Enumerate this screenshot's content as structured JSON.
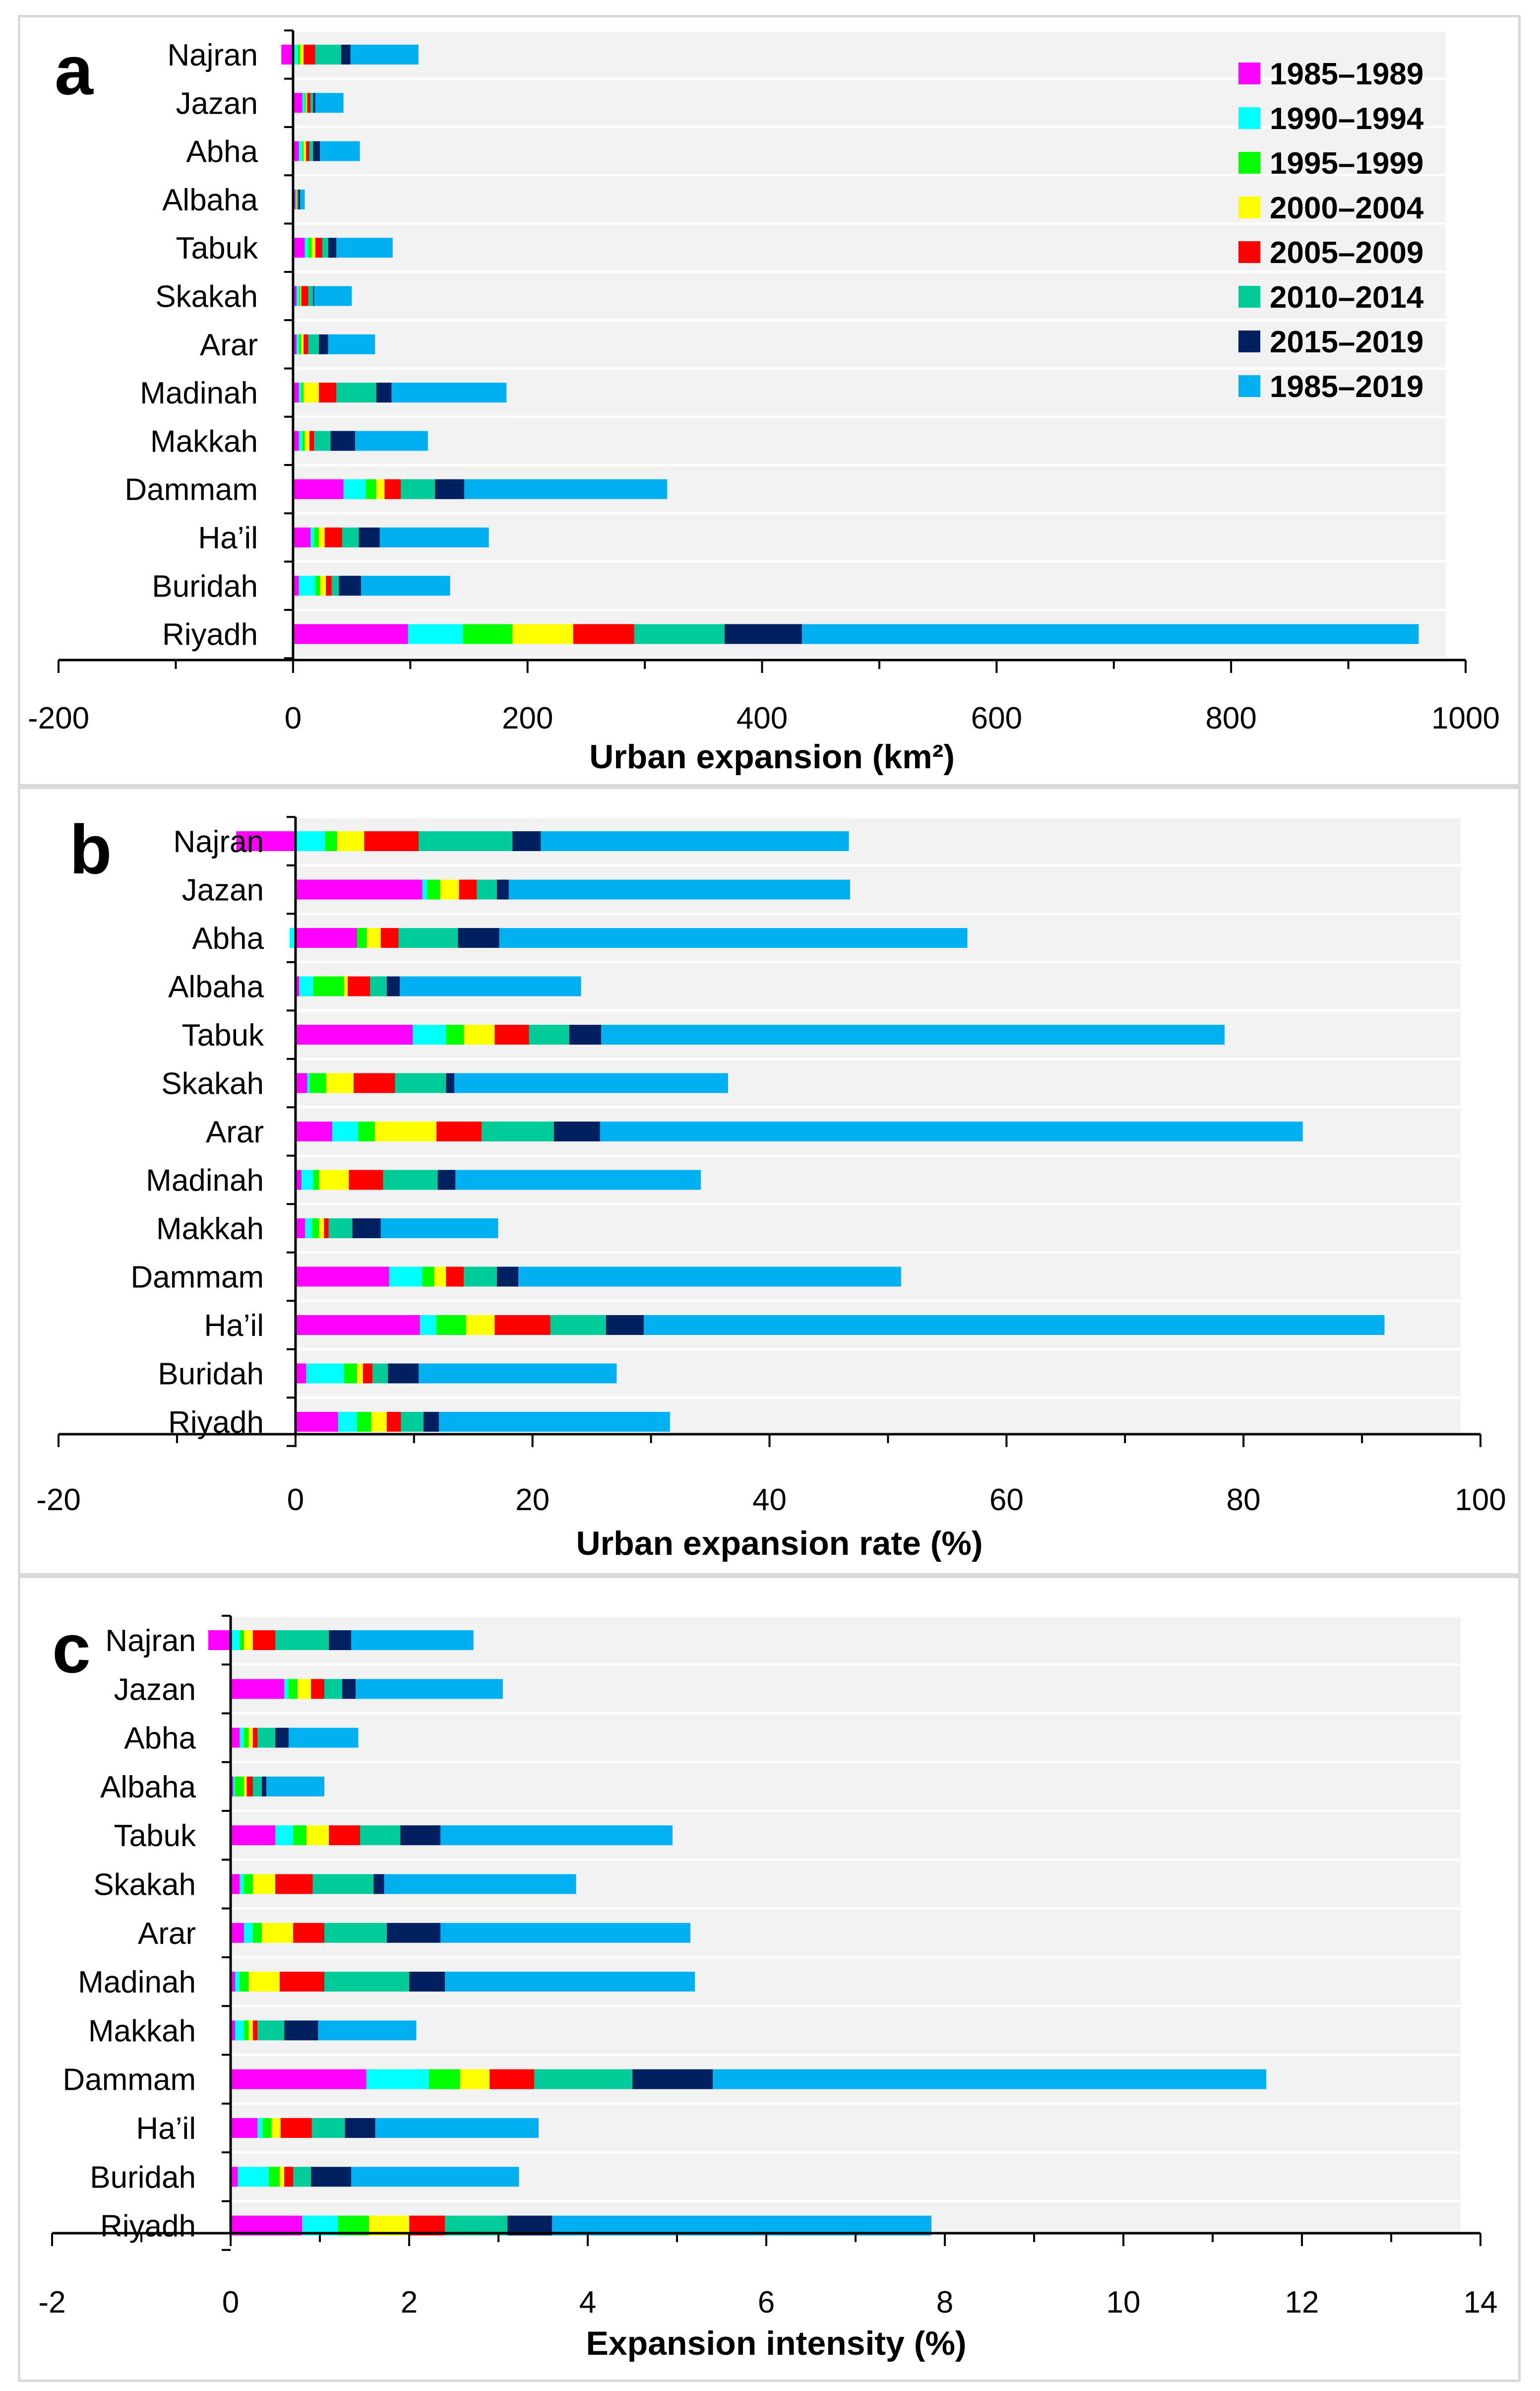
{
  "legend": [
    {
      "label": "1985–1989",
      "color": "#FF00FF"
    },
    {
      "label": "1990–1994",
      "color": "#00FFFF"
    },
    {
      "label": "1995–1999",
      "color": "#00FF00"
    },
    {
      "label": "2000–2004",
      "color": "#FFFF00"
    },
    {
      "label": "2005–2009",
      "color": "#FF0000"
    },
    {
      "label": "2010–2014",
      "color": "#00CC99"
    },
    {
      "label": "2015–2019",
      "color": "#002060"
    },
    {
      "label": "1985–2019",
      "color": "#00B0F0"
    }
  ],
  "chart_data": [
    {
      "type": "bar",
      "orientation": "horizontal",
      "stacked": true,
      "panel_label": "a",
      "xlabel": "Urban expansion (km²)",
      "xlim": [
        -200,
        1000
      ],
      "xticks": [
        "-200",
        "0",
        "200",
        "400",
        "600",
        "800",
        "1000"
      ],
      "xtick_values": [
        -200,
        0,
        200,
        400,
        600,
        800,
        1000
      ],
      "categories": [
        "Najran",
        "Jazan",
        "Abha",
        "Albaha",
        "Tabuk",
        "Skakah",
        "Arar",
        "Madinah",
        "Makkah",
        "Dammam",
        "Ha’il",
        "Buridah",
        "Riyadh"
      ],
      "series": [
        {
          "name": "1985–1989",
          "values": [
            -10,
            8,
            5,
            2,
            10,
            3,
            3,
            5,
            5,
            43,
            15,
            5,
            98
          ]
        },
        {
          "name": "1990–1994",
          "values": [
            4,
            2,
            3,
            0.5,
            3,
            2,
            2,
            2,
            3,
            19,
            3,
            14,
            47
          ]
        },
        {
          "name": "1995–1999",
          "values": [
            2,
            1,
            1,
            0.5,
            3,
            1,
            2,
            2,
            2,
            9,
            4,
            4,
            42
          ]
        },
        {
          "name": "2000–2004",
          "values": [
            3,
            1,
            2,
            0.5,
            3,
            1,
            2,
            13,
            4,
            7,
            5,
            5,
            52
          ]
        },
        {
          "name": "2005–2009",
          "values": [
            10,
            3,
            3,
            0.5,
            6,
            6,
            4,
            15,
            4,
            14,
            15,
            5,
            52
          ]
        },
        {
          "name": "2010–2014",
          "values": [
            22,
            2,
            3,
            0.5,
            5,
            4,
            9,
            34,
            14,
            29,
            14,
            6,
            77
          ]
        },
        {
          "name": "2015–2019",
          "values": [
            8,
            2,
            6,
            1.5,
            7,
            1,
            8,
            13,
            21,
            25,
            18,
            19,
            66
          ]
        },
        {
          "name": "1985–2019",
          "values": [
            58,
            24,
            34,
            4,
            48,
            32,
            40,
            98,
            62,
            173,
            93,
            76,
            526
          ]
        }
      ]
    },
    {
      "type": "bar",
      "orientation": "horizontal",
      "stacked": true,
      "panel_label": "b",
      "xlabel": "Urban expansion rate (%)",
      "xlim": [
        -20,
        100
      ],
      "xticks": [
        "-20",
        "0",
        "20",
        "40",
        "60",
        "80",
        "100"
      ],
      "xtick_values": [
        -20,
        0,
        20,
        40,
        60,
        80,
        100
      ],
      "categories": [
        "Najran",
        "Jazan",
        "Abha",
        "Albaha",
        "Tabuk",
        "Skakah",
        "Arar",
        "Madinah",
        "Makkah",
        "Dammam",
        "Ha’il",
        "Buridah",
        "Riyadh"
      ],
      "series": [
        {
          "name": "1985–1989",
          "values": [
            -5,
            10.7,
            5.2,
            0.3,
            9.9,
            1,
            3.1,
            0.5,
            0.8,
            7.9,
            10.5,
            0.9,
            3.6
          ]
        },
        {
          "name": "1990–1994",
          "values": [
            2.5,
            0.4,
            -0.5,
            1.2,
            2.8,
            0.2,
            2.2,
            1,
            0.6,
            2.8,
            1.4,
            3.2,
            1.6
          ]
        },
        {
          "name": "1995–1999",
          "values": [
            1,
            1.1,
            0.8,
            2.6,
            1.5,
            1.4,
            1.4,
            0.5,
            0.6,
            1,
            2.5,
            1.1,
            1.2
          ]
        },
        {
          "name": "2000–2004",
          "values": [
            2.3,
            1.6,
            1.2,
            0.3,
            2.6,
            2.3,
            5.2,
            2.5,
            0.4,
            1,
            2.4,
            0.5,
            1.3
          ]
        },
        {
          "name": "2005–2009",
          "values": [
            4.6,
            1.5,
            1.5,
            1.9,
            2.9,
            3.5,
            3.8,
            2.9,
            0.4,
            1.5,
            4.7,
            0.8,
            1.2
          ]
        },
        {
          "name": "2010–2014",
          "values": [
            7.9,
            1.7,
            5,
            1.4,
            3.4,
            4.3,
            6.1,
            4.6,
            2,
            2.8,
            4.7,
            1.3,
            1.9
          ]
        },
        {
          "name": "2015–2019",
          "values": [
            2.4,
            1,
            3.5,
            1.1,
            2.7,
            0.7,
            3.9,
            1.5,
            2.4,
            1.8,
            3.2,
            2.6,
            1.3
          ]
        },
        {
          "name": "1985–2019",
          "values": [
            26,
            28.8,
            39.5,
            15.3,
            52.6,
            23.1,
            59.3,
            20.7,
            9.9,
            32.3,
            62.5,
            16.7,
            19.5
          ]
        }
      ]
    },
    {
      "type": "bar",
      "orientation": "horizontal",
      "stacked": true,
      "panel_label": "c",
      "xlabel": "Expansion intensity (%)",
      "xlim": [
        -2,
        14
      ],
      "xticks": [
        "-2",
        "0",
        "2",
        "4",
        "6",
        "8",
        "10",
        "12",
        "14"
      ],
      "xtick_values": [
        -2,
        0,
        2,
        4,
        6,
        8,
        10,
        12,
        14
      ],
      "categories": [
        "Najran",
        "Jazan",
        "Abha",
        "Albaha",
        "Tabuk",
        "Skakah",
        "Arar",
        "Madinah",
        "Makkah",
        "Dammam",
        "Ha’il",
        "Buridah",
        "Riyadh"
      ],
      "series": [
        {
          "name": "1985–1989",
          "values": [
            -0.25,
            0.6,
            0.1,
            0.03,
            0.5,
            0.1,
            0.15,
            0.05,
            0.05,
            1.52,
            0.3,
            0.08,
            0.8
          ]
        },
        {
          "name": "1990–1994",
          "values": [
            0.1,
            0.05,
            0.05,
            0.02,
            0.2,
            0.05,
            0.1,
            0.05,
            0.1,
            0.7,
            0.06,
            0.35,
            0.4
          ]
        },
        {
          "name": "1995–1999",
          "values": [
            0.05,
            0.1,
            0.05,
            0.1,
            0.15,
            0.1,
            0.1,
            0.1,
            0.05,
            0.35,
            0.1,
            0.12,
            0.35
          ]
        },
        {
          "name": "2000–2004",
          "values": [
            0.1,
            0.15,
            0.05,
            0.03,
            0.25,
            0.25,
            0.35,
            0.35,
            0.05,
            0.33,
            0.1,
            0.05,
            0.45
          ]
        },
        {
          "name": "2005–2009",
          "values": [
            0.25,
            0.15,
            0.05,
            0.07,
            0.35,
            0.42,
            0.35,
            0.5,
            0.05,
            0.5,
            0.35,
            0.1,
            0.4
          ]
        },
        {
          "name": "2010–2014",
          "values": [
            0.6,
            0.2,
            0.2,
            0.1,
            0.45,
            0.68,
            0.7,
            0.95,
            0.3,
            1.1,
            0.37,
            0.2,
            0.7
          ]
        },
        {
          "name": "2015–2019",
          "values": [
            0.25,
            0.15,
            0.15,
            0.05,
            0.45,
            0.12,
            0.6,
            0.4,
            0.38,
            0.9,
            0.34,
            0.45,
            0.5
          ]
        },
        {
          "name": "1985–2019",
          "values": [
            1.37,
            1.65,
            0.78,
            0.65,
            2.6,
            2.15,
            2.8,
            2.8,
            1.1,
            6.2,
            1.83,
            1.88,
            4.25
          ]
        }
      ]
    }
  ]
}
